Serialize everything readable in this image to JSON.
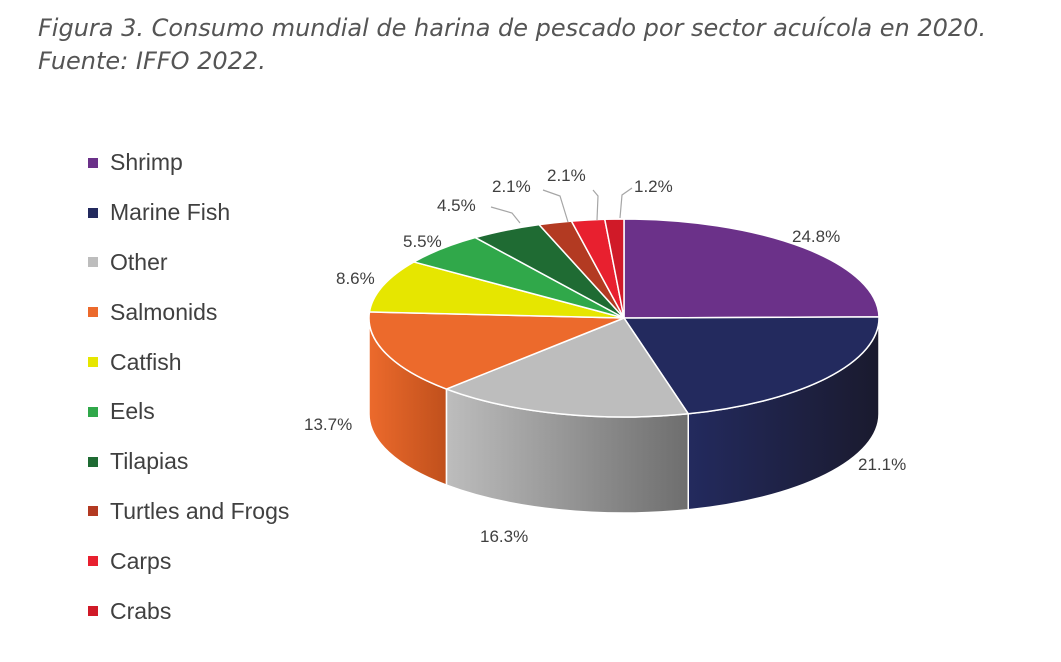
{
  "caption": "Figura 3. Consumo mundial de harina de pescado por sector acuícola en 2020. Fuente: IFFO 2022.",
  "chart_data": {
    "type": "pie",
    "three_d": true,
    "legend_position": "left",
    "start_angle": "top",
    "direction": "clockwise",
    "title": "",
    "slices": [
      {
        "name": "Shrimp",
        "value": 24.8,
        "label": "24.8%",
        "color": "#6b3189",
        "side_color": "#4a1f60"
      },
      {
        "name": "Marine Fish",
        "value": 21.1,
        "label": "21.1%",
        "color": "#232a5e",
        "side_color": "#1a1a2e"
      },
      {
        "name": "Other",
        "value": 16.3,
        "label": "16.3%",
        "color": "#bdbdbd",
        "side_color": "#6e6e6e"
      },
      {
        "name": "Salmonids",
        "value": 13.7,
        "label": "13.7%",
        "color": "#ec6a2c",
        "side_color": "#c0501c"
      },
      {
        "name": "Catfish",
        "value": 8.6,
        "label": "8.6%",
        "color": "#e6e600",
        "side_color": "#b3b300"
      },
      {
        "name": "Eels",
        "value": 5.5,
        "label": "5.5%",
        "color": "#30a84a",
        "side_color": "#237a36"
      },
      {
        "name": "Tilapias",
        "value": 4.5,
        "label": "4.5%",
        "color": "#1f6b33",
        "side_color": "#154a23"
      },
      {
        "name": "Turtles and Frogs",
        "value": 2.1,
        "label": "2.1%",
        "color": "#b33a22",
        "side_color": "#7e2817"
      },
      {
        "name": "Carps",
        "value": 2.1,
        "label": "2.1%",
        "color": "#e8202f",
        "side_color": "#a81620"
      },
      {
        "name": "Crabs",
        "value": 1.2,
        "label": "1.2%",
        "color": "#d01a28",
        "side_color": "#94121c"
      }
    ]
  }
}
